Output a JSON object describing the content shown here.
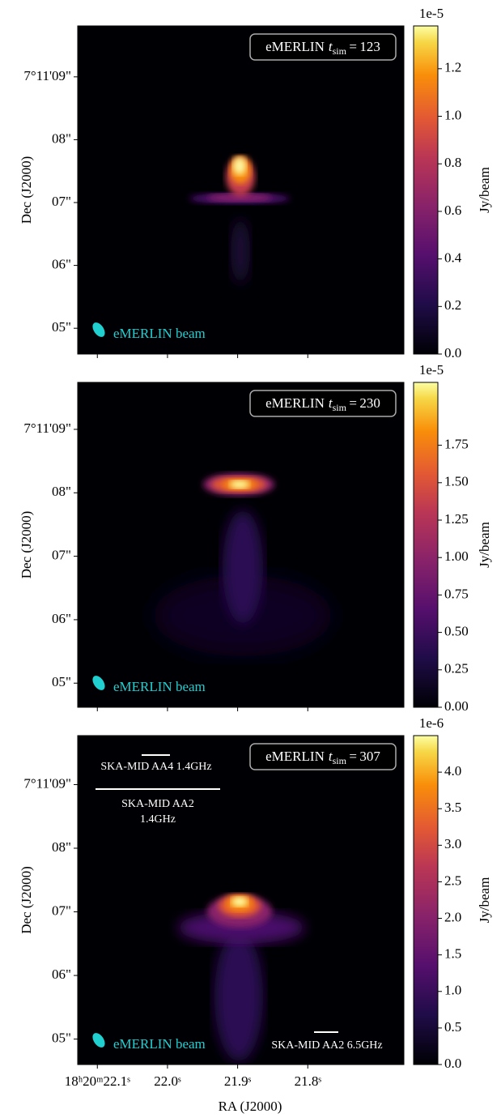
{
  "chart_data": [
    {
      "type": "image",
      "annotation": {
        "label": "eMERLIN",
        "symbol": "t",
        "subscript": "sim",
        "value": 123
      },
      "beam_label": "eMERLIN beam",
      "ylabel": "Dec (J2000)",
      "ylim": [
        4.59,
        9.81
      ],
      "yticks": [
        {
          "value": 9,
          "label": "7°11'09\""
        },
        {
          "value": 8,
          "label": "08\""
        },
        {
          "value": 7,
          "label": "07\""
        },
        {
          "value": 6,
          "label": "06\""
        },
        {
          "value": 5,
          "label": "05\""
        }
      ],
      "xlim": [
        22.128,
        21.663
      ],
      "xticks": [
        22.1,
        22,
        21.9,
        21.8
      ],
      "colorbar": {
        "label": "Jy/beam",
        "offset_text": "1e-5",
        "cmap": "inferno",
        "clim": [
          0,
          1.38
        ],
        "ticks": [
          {
            "value": 0,
            "label": "0.0"
          },
          {
            "value": 0.2,
            "label": "0.2"
          },
          {
            "value": 0.4,
            "label": "0.4"
          },
          {
            "value": 0.6,
            "label": "0.6"
          },
          {
            "value": 0.8,
            "label": "0.8"
          },
          {
            "value": 1,
            "label": "1.0"
          },
          {
            "value": 1.2,
            "label": "1.2"
          }
        ]
      }
    },
    {
      "type": "image",
      "annotation": {
        "label": "eMERLIN",
        "symbol": "t",
        "subscript": "sim",
        "value": 230
      },
      "beam_label": "eMERLIN beam",
      "ylabel": "Dec (J2000)",
      "ylim": [
        4.62,
        9.74
      ],
      "yticks": [
        {
          "value": 9,
          "label": "7°11'09\""
        },
        {
          "value": 8,
          "label": "08\""
        },
        {
          "value": 7,
          "label": "07\""
        },
        {
          "value": 6,
          "label": "06\""
        },
        {
          "value": 5,
          "label": "05\""
        }
      ],
      "xlim": [
        22.128,
        21.663
      ],
      "xticks": [
        22.1,
        22,
        21.9,
        21.8
      ],
      "colorbar": {
        "label": "Jy/beam",
        "offset_text": "1e-5",
        "cmap": "inferno",
        "clim": [
          0,
          2.17
        ],
        "ticks": [
          {
            "value": 0,
            "label": "0.00"
          },
          {
            "value": 0.25,
            "label": "0.25"
          },
          {
            "value": 0.5,
            "label": "0.50"
          },
          {
            "value": 0.75,
            "label": "0.75"
          },
          {
            "value": 1,
            "label": "1.00"
          },
          {
            "value": 1.25,
            "label": "1.25"
          },
          {
            "value": 1.5,
            "label": "1.50"
          },
          {
            "value": 1.75,
            "label": "1.75"
          }
        ]
      }
    },
    {
      "type": "image",
      "annotation": {
        "label": "eMERLIN",
        "symbol": "t",
        "subscript": "sim",
        "value": 307
      },
      "beam_label": "eMERLIN beam",
      "scale_bars": {
        "aa4": "SKA-MID AA4 1.4GHz",
        "aa2_line1": "SKA-MID AA2",
        "aa2_line2": "1.4GHz",
        "aa2_65": "SKA-MID AA2 6.5GHz"
      },
      "ylabel": "Dec (J2000)",
      "xlabel": "RA (J2000)",
      "ylim": [
        4.6,
        9.77
      ],
      "yticks": [
        {
          "value": 9,
          "label": "7°11'09\""
        },
        {
          "value": 8,
          "label": "08\""
        },
        {
          "value": 7,
          "label": "07\""
        },
        {
          "value": 6,
          "label": "06\""
        },
        {
          "value": 5,
          "label": "05\""
        }
      ],
      "xlim": [
        22.128,
        21.663
      ],
      "xticks": [
        {
          "value": 22.1,
          "label": "18ʰ20ᵐ22.1ˢ"
        },
        {
          "value": 22,
          "label": "22.0ˢ"
        },
        {
          "value": 21.9,
          "label": "21.9ˢ"
        },
        {
          "value": 21.8,
          "label": "21.8ˢ"
        }
      ],
      "colorbar": {
        "label": "Jy/beam",
        "offset_text": "1e-6",
        "cmap": "inferno",
        "clim": [
          0,
          4.5
        ],
        "ticks": [
          {
            "value": 0,
            "label": "0.0"
          },
          {
            "value": 0.5,
            "label": "0.5"
          },
          {
            "value": 1,
            "label": "1.0"
          },
          {
            "value": 1.5,
            "label": "1.5"
          },
          {
            "value": 2,
            "label": "2.0"
          },
          {
            "value": 2.5,
            "label": "2.5"
          },
          {
            "value": 3,
            "label": "3.0"
          },
          {
            "value": 3.5,
            "label": "3.5"
          },
          {
            "value": 4,
            "label": "4.0"
          }
        ]
      }
    }
  ]
}
